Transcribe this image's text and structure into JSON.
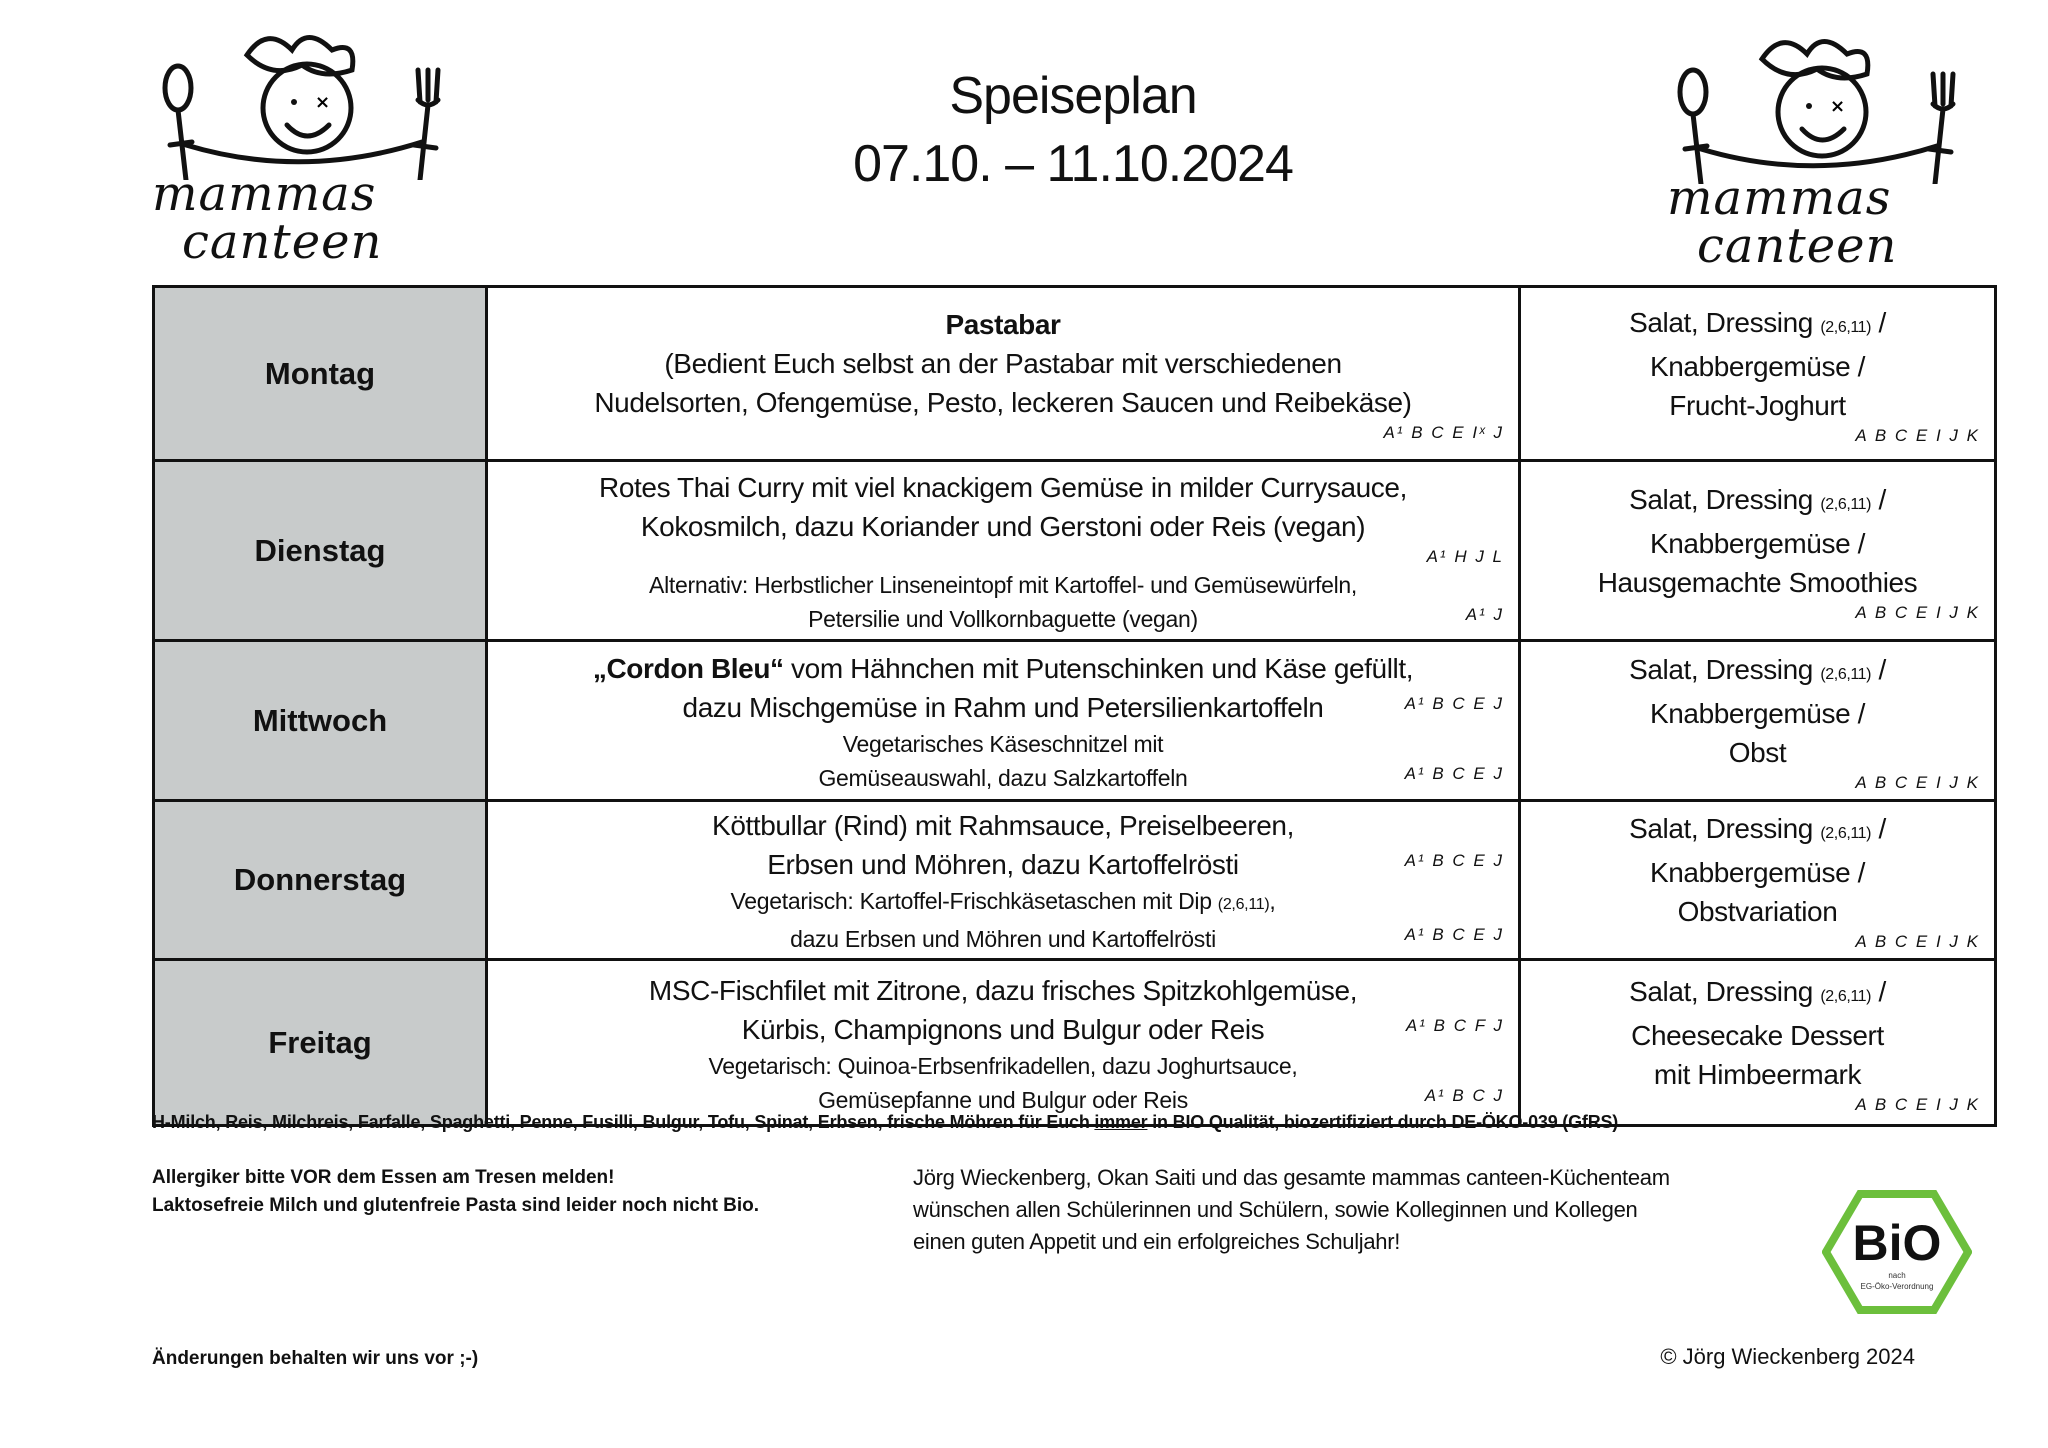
{
  "header": {
    "title": "Speiseplan",
    "date_range": "07.10. – 11.10.2024",
    "logo_text": [
      "mammas",
      "canteen"
    ]
  },
  "days": [
    {
      "day": "Montag",
      "main": [
        {
          "size": "l",
          "bold": "Pastabar",
          "text": ""
        },
        {
          "size": "l",
          "text": "(Bedient Euch selbst an der Pastabar mit verschiedenen"
        },
        {
          "size": "l",
          "text": "Nudelsorten, Ofengemüse, Pesto, leckeren Saucen und Reibekäse)"
        },
        {
          "size": "alonly",
          "allergens": "A¹ B C E Iˣ J"
        }
      ],
      "side": [
        {
          "size": "l",
          "text": "Salat, Dressing",
          "note": "(2,6,11)",
          "after": " /"
        },
        {
          "size": "l",
          "text": "Knabbergemüse /"
        },
        {
          "size": "l",
          "text": "Frucht-Joghurt"
        },
        {
          "size": "alonly",
          "allergens": "A B C E I J K"
        }
      ]
    },
    {
      "day": "Dienstag",
      "main": [
        {
          "size": "l",
          "text": "Rotes Thai Curry mit viel knackigem Gemüse in milder Currysauce,"
        },
        {
          "size": "l",
          "text": "Kokosmilch, dazu Koriander und Gerstoni oder Reis (vegan)"
        },
        {
          "size": "alonly",
          "allergens": "A¹ H J L"
        },
        {
          "size": "m",
          "text": "Alternativ: Herbstlicher Linseneintopf mit Kartoffel- und Gemüsewürfeln,"
        },
        {
          "size": "m",
          "text": "Petersilie und Vollkornbaguette (vegan)",
          "allergens": "A¹ J"
        }
      ],
      "side": [
        {
          "size": "l",
          "text": "Salat, Dressing",
          "note": "(2,6,11)",
          "after": " /"
        },
        {
          "size": "l",
          "text": "Knabbergemüse /"
        },
        {
          "size": "l",
          "text": "Hausgemachte Smoothies"
        },
        {
          "size": "alonly",
          "allergens": "A B C E I J K"
        }
      ]
    },
    {
      "day": "Mittwoch",
      "main": [
        {
          "size": "l",
          "bold": "„Cordon Bleu“",
          "text": " vom Hähnchen mit Putenschinken und Käse gefüllt,"
        },
        {
          "size": "l",
          "text": "dazu Mischgemüse in Rahm und Petersilienkartoffeln",
          "allergens": "A¹ B C E J"
        },
        {
          "size": "m",
          "text": "Vegetarisches Käseschnitzel mit"
        },
        {
          "size": "m",
          "text": "Gemüseauswahl, dazu Salzkartoffeln",
          "allergens": "A¹ B C E J"
        }
      ],
      "side": [
        {
          "size": "l",
          "text": "Salat, Dressing",
          "note": "(2,6,11)",
          "after": " /"
        },
        {
          "size": "l",
          "text": "Knabbergemüse /"
        },
        {
          "size": "l",
          "text": "Obst"
        },
        {
          "size": "alonly",
          "allergens": "A B C E I J K"
        }
      ]
    },
    {
      "day": "Donnerstag",
      "main": [
        {
          "size": "l",
          "text": "Köttbullar (Rind) mit Rahmsauce, Preiselbeeren,"
        },
        {
          "size": "l",
          "text": "Erbsen und Möhren, dazu Kartoffelrösti",
          "allergens": "A¹ B C E J"
        },
        {
          "size": "m",
          "text": "Vegetarisch: Kartoffel-Frischkäsetaschen mit Dip",
          "note": "(2,6,11)",
          "after": ","
        },
        {
          "size": "m",
          "text": "dazu Erbsen und Möhren und Kartoffelrösti",
          "allergens": "A¹ B C E J"
        }
      ],
      "side": [
        {
          "size": "l",
          "text": "Salat, Dressing",
          "note": "(2,6,11)",
          "after": " /"
        },
        {
          "size": "l",
          "text": "Knabbergemüse /"
        },
        {
          "size": "l",
          "text": "Obstvariation"
        },
        {
          "size": "alonly",
          "allergens": "A B C E I J K"
        }
      ]
    },
    {
      "day": "Freitag",
      "main": [
        {
          "size": "l",
          "text": "MSC-Fischfilet mit Zitrone, dazu frisches Spitzkohlgemüse,"
        },
        {
          "size": "l",
          "text": "Kürbis, Champignons und Bulgur oder Reis",
          "allergens": "A¹ B C F J"
        },
        {
          "size": "m",
          "text": "Vegetarisch: Quinoa-Erbsenfrikadellen, dazu Joghurtsauce,"
        },
        {
          "size": "m",
          "text": "Gemüsepfanne und Bulgur oder Reis",
          "allergens": "A¹ B C J"
        }
      ],
      "side": [
        {
          "size": "l",
          "text": "Salat, Dressing",
          "note": "(2,6,11)",
          "after": " /"
        },
        {
          "size": "l",
          "text": "Cheesecake Dessert"
        },
        {
          "size": "l",
          "text": "mit Himbeermark"
        },
        {
          "size": "alonly",
          "allergens": "A B C E I J K"
        }
      ]
    }
  ],
  "footer": {
    "bio_note_before": "H-Milch, Reis, Milchreis, Farfalle, Spaghetti, Penne, Fusilli, Bulgur, Tofu, Spinat, Erbsen, frische Möhren für Euch ",
    "bio_note_underlined": "immer",
    "bio_note_after": " in BIO Qualität, biozertifiziert durch DE-ÖKO-039 (GfRS)",
    "allergy_line1": "Allergiker bitte VOR dem Essen am Tresen melden!",
    "allergy_line2": "Laktosefreie Milch und glutenfreie Pasta sind leider noch nicht Bio.",
    "greeting": [
      "Jörg Wieckenberg, Okan Saiti und das gesamte mammas canteen-Küchenteam",
      "wünschen allen Schülerinnen und Schülern, sowie Kolleginnen und Kollegen",
      "einen guten Appetit und ein erfolgreiches Schuljahr!"
    ],
    "bio_logo": {
      "text": "BiO",
      "sub1": "nach",
      "sub2": "EG-Öko-Verordnung",
      "color": "#6cbf3c"
    },
    "changes": "Änderungen behalten wir uns vor ;-)",
    "copyright": "© Jörg Wieckenberg 2024"
  }
}
